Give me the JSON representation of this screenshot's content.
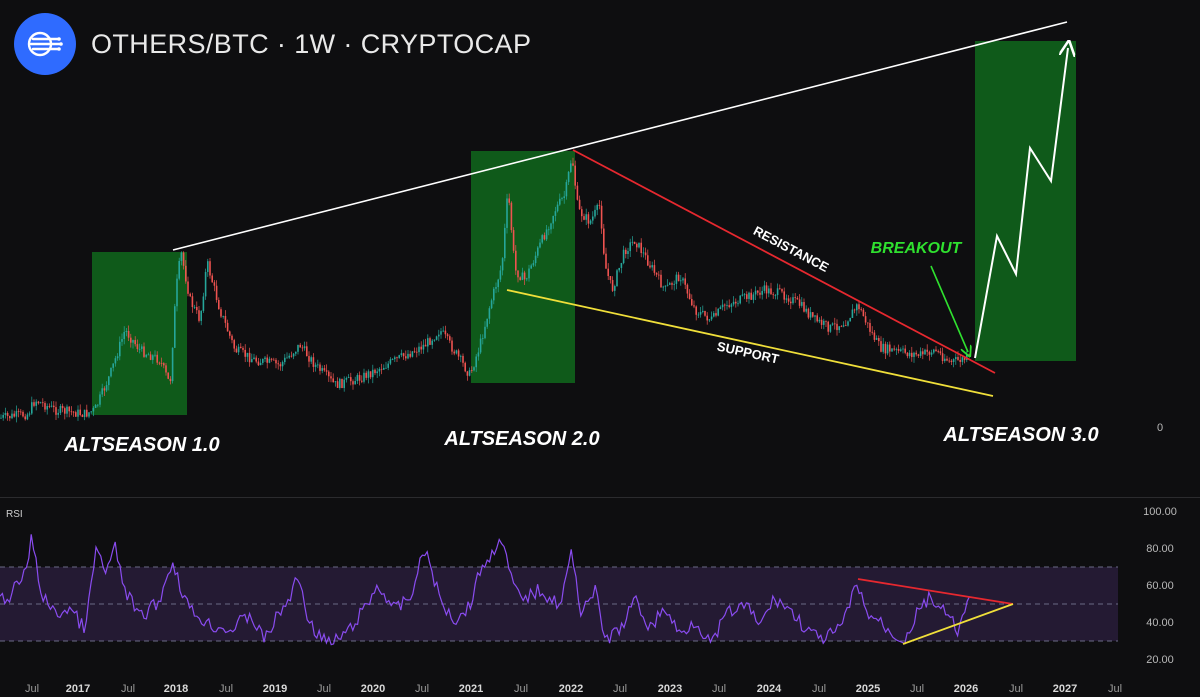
{
  "header": {
    "logo_icon": "signal-streams-icon",
    "title": "OTHERS/BTC · 1W · CRYPTOCAP"
  },
  "annotations": {
    "altseason_1": "ALTSEASON 1.0",
    "altseason_2": "ALTSEASON 2.0",
    "altseason_3": "ALTSEASON 3.0",
    "resistance": "RESISTANCE",
    "support": "SUPPORT",
    "breakout": "BREAKOUT"
  },
  "colors": {
    "background": "#0e0e10",
    "candle_up": "#26a69a",
    "candle_down": "#ef5350",
    "highlight_zone": "#0f5a1a",
    "trend_line": "#ffffff",
    "resistance": "#e6282f",
    "support": "#f0df3a",
    "breakout_text": "#2fe02f",
    "rsi_line": "#8a4cf0",
    "rsi_band": "#241a33"
  },
  "chart_data": [
    {
      "type": "candlestick",
      "title": "OTHERS/BTC · 1W · CRYPTOCAP",
      "x_axis": [
        "Jul",
        "2017",
        "Jul",
        "2018",
        "Jul",
        "2019",
        "Jul",
        "2020",
        "Jul",
        "2021",
        "Jul",
        "2022",
        "Jul",
        "2023",
        "Jul",
        "2024",
        "Jul",
        "2025",
        "Jul",
        "2026",
        "Jul",
        "2027",
        "Jul"
      ],
      "y_axis_ticks": [
        "0"
      ],
      "highlight_zones": [
        {
          "label": "ALTSEASON 1.0",
          "from": "2017.40",
          "to": "2018.05"
        },
        {
          "label": "ALTSEASON 2.0",
          "from": "2021.00",
          "to": "2021.94"
        },
        {
          "label": "ALTSEASON 3.0",
          "from": "2026.03",
          "to": "2027.00"
        }
      ],
      "lines": [
        "upper trendline",
        "RESISTANCE",
        "SUPPORT"
      ],
      "projection": "BREAKOUT"
    },
    {
      "type": "line",
      "title": "RSI",
      "y_ticks": [
        "100.00",
        "80.00",
        "60.00",
        "40.00",
        "20.00"
      ],
      "ylim": [
        20,
        100
      ],
      "band": [
        30,
        70
      ],
      "midline": 50
    }
  ]
}
